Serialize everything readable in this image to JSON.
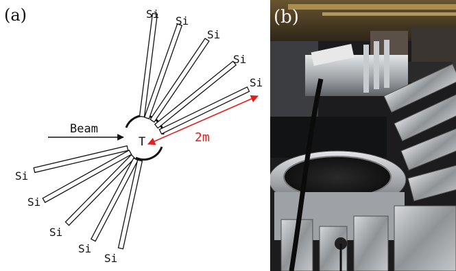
{
  "panel_a": {
    "label": "(a)",
    "beam_label": "Beam",
    "target_label": "T",
    "distance_label": "2m",
    "detector_label": "Si",
    "detector_count": 10,
    "colors": {
      "lines": "#111111",
      "distance": "#e02020"
    }
  },
  "panel_b": {
    "label": "(b)",
    "photo": "experimental-chamber-photograph"
  }
}
